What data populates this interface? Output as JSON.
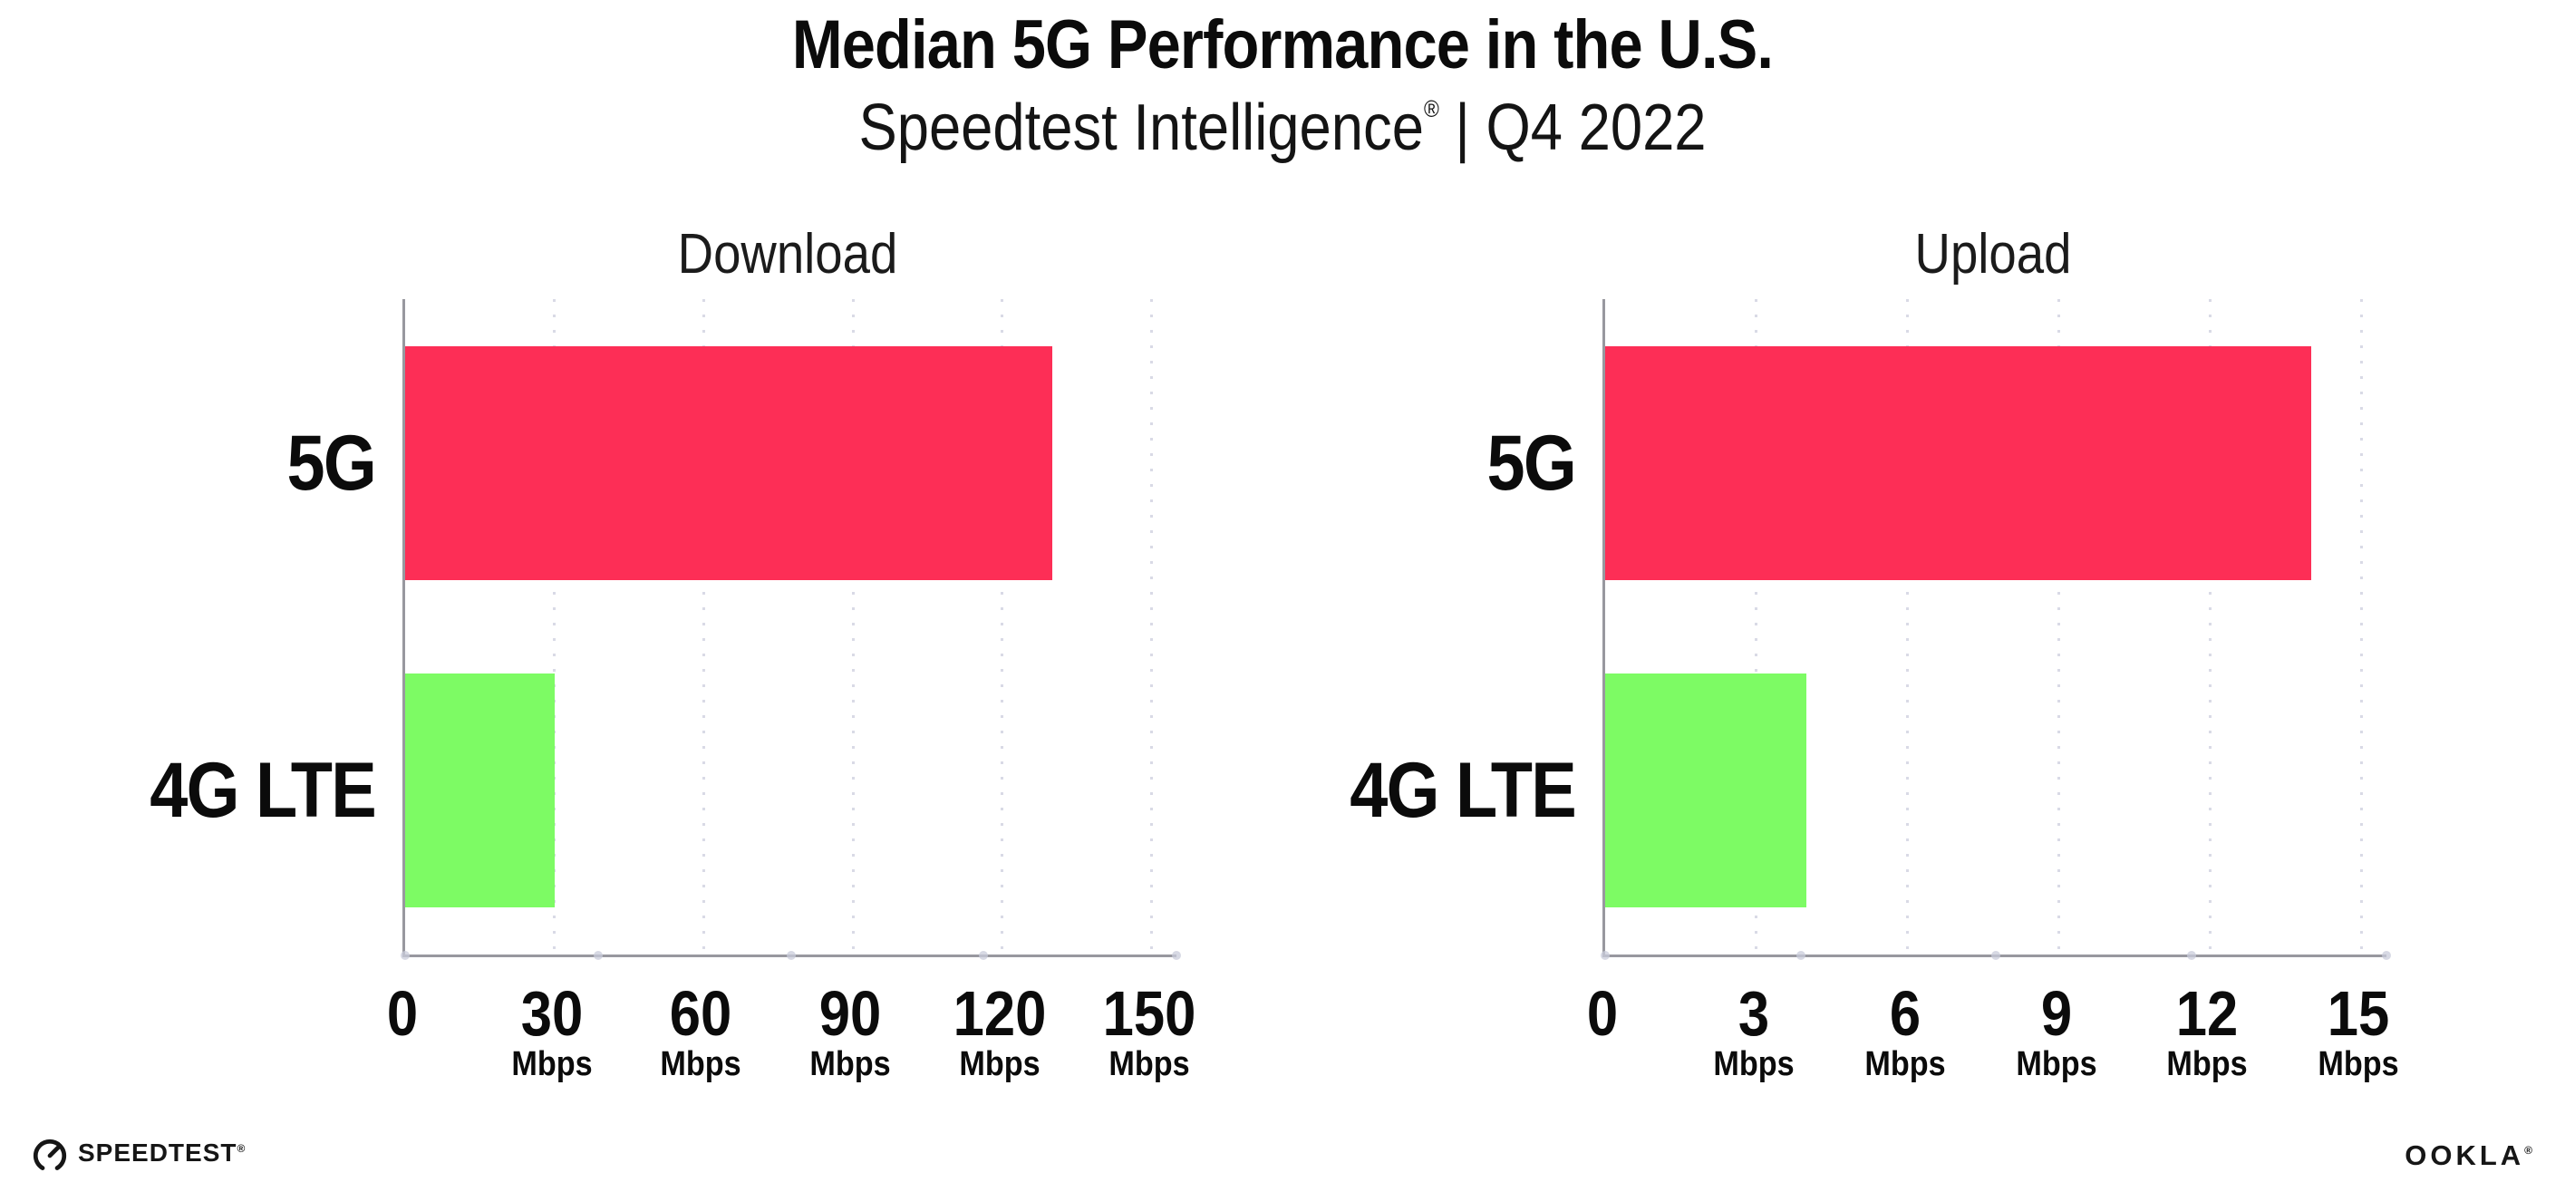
{
  "header": {
    "title": "Median 5G Performance in the U.S.",
    "subtitle": {
      "brand": "Speedtest Intelligence",
      "registered": "®",
      "separator": "|",
      "period": "Q4 2022"
    }
  },
  "chart_data": [
    {
      "type": "bar",
      "orientation": "horizontal",
      "title": "Download",
      "categories": [
        "5G",
        "4G LTE"
      ],
      "values": [
        130,
        30
      ],
      "unit": "Mbps",
      "xlim": [
        0,
        155
      ],
      "ticks": [
        0,
        30,
        60,
        90,
        120,
        150
      ],
      "tick_unit_label": "Mbps",
      "grid": "dotted-vertical",
      "legend": "none",
      "bar_colors": [
        "#FD2E56",
        "#7DFB64"
      ]
    },
    {
      "type": "bar",
      "orientation": "horizontal",
      "title": "Upload",
      "categories": [
        "5G",
        "4G LTE"
      ],
      "values": [
        14,
        4
      ],
      "unit": "Mbps",
      "xlim": [
        0,
        15.5
      ],
      "ticks": [
        0,
        3,
        6,
        9,
        12,
        15
      ],
      "tick_unit_label": "Mbps",
      "grid": "dotted-vertical",
      "legend": "none",
      "bar_colors": [
        "#FD2E56",
        "#7DFB64"
      ]
    }
  ],
  "style": {
    "bar_red": "#FD2E56",
    "bar_green": "#7DFB64",
    "axis_color": "#98989f",
    "grid_color": "#d9dae6",
    "text_color": "#0f0f0f"
  },
  "footer": {
    "speedtest": {
      "label": "SPEEDTEST",
      "mark": "®",
      "icon": "speedtest-gauge-icon"
    },
    "ookla": {
      "label": "OOKLA",
      "mark": "®"
    }
  }
}
